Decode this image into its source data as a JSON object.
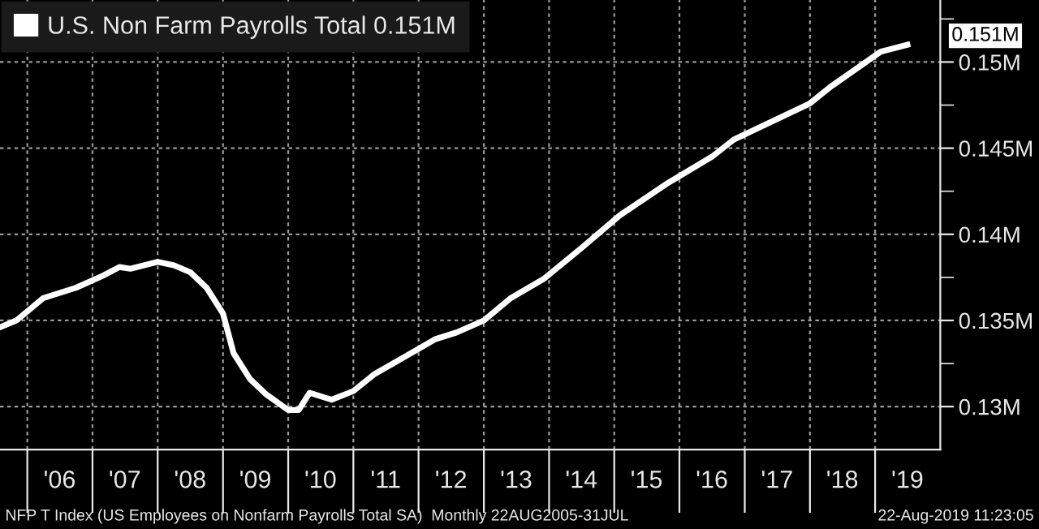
{
  "chart_data": {
    "type": "line",
    "x": [
      "2005-08",
      "2005-11",
      "2006-04",
      "2006-10",
      "2007-03",
      "2007-06",
      "2007-08",
      "2008-01",
      "2008-04",
      "2008-07",
      "2008-10",
      "2009-01",
      "2009-03",
      "2009-06",
      "2009-09",
      "2010-01",
      "2010-03",
      "2010-05",
      "2010-09",
      "2011-01",
      "2011-05",
      "2011-10",
      "2012-04",
      "2012-08",
      "2013-01",
      "2013-06",
      "2013-12",
      "2014-07",
      "2015-02",
      "2015-11",
      "2016-07",
      "2016-11",
      "2017-09",
      "2018-01",
      "2018-05",
      "2019-02",
      "2019-07"
    ],
    "series": [
      {
        "name": "U.S. Non Farm Payrolls Total 0.151M",
        "color": "#ffffff",
        "values": [
          0.1346,
          0.135,
          0.1363,
          0.1369,
          0.1376,
          0.1381,
          0.138,
          0.1384,
          0.1382,
          0.1378,
          0.1369,
          0.1354,
          0.1331,
          0.1316,
          0.1307,
          0.1298,
          0.1298,
          0.1308,
          0.1304,
          0.1309,
          0.1319,
          0.1328,
          0.1339,
          0.1343,
          0.135,
          0.1363,
          0.1374,
          0.1392,
          0.1411,
          0.143,
          0.1445,
          0.1455,
          0.147,
          0.1476,
          0.1486,
          0.1506,
          0.151
        ]
      }
    ],
    "xlim": [
      "2005-08",
      "2020-01"
    ],
    "xticks": [
      {
        "value": "2006-01",
        "label": null
      },
      {
        "value": "2006-07",
        "label": "'06"
      },
      {
        "value": "2007-01",
        "label": null
      },
      {
        "value": "2007-07",
        "label": "'07"
      },
      {
        "value": "2008-01",
        "label": null
      },
      {
        "value": "2008-07",
        "label": "'08"
      },
      {
        "value": "2009-01",
        "label": null
      },
      {
        "value": "2009-07",
        "label": "'09"
      },
      {
        "value": "2010-01",
        "label": null
      },
      {
        "value": "2010-07",
        "label": "'10"
      },
      {
        "value": "2011-01",
        "label": null
      },
      {
        "value": "2011-07",
        "label": "'11"
      },
      {
        "value": "2012-01",
        "label": null
      },
      {
        "value": "2012-07",
        "label": "'12"
      },
      {
        "value": "2013-01",
        "label": null
      },
      {
        "value": "2013-07",
        "label": "'13"
      },
      {
        "value": "2014-01",
        "label": null
      },
      {
        "value": "2014-07",
        "label": "'14"
      },
      {
        "value": "2015-01",
        "label": null
      },
      {
        "value": "2015-07",
        "label": "'15"
      },
      {
        "value": "2016-01",
        "label": null
      },
      {
        "value": "2016-07",
        "label": "'16"
      },
      {
        "value": "2017-01",
        "label": null
      },
      {
        "value": "2017-07",
        "label": "'17"
      },
      {
        "value": "2018-01",
        "label": null
      },
      {
        "value": "2018-07",
        "label": "'18"
      },
      {
        "value": "2019-01",
        "label": null
      },
      {
        "value": "2019-07",
        "label": "'19"
      }
    ],
    "ylim": [
      0.1275,
      0.1536
    ],
    "yticks": [
      {
        "value": 0.13,
        "label": "0.13M"
      },
      {
        "value": 0.1325,
        "label": null
      },
      {
        "value": 0.135,
        "label": "0.135M"
      },
      {
        "value": 0.1375,
        "label": null
      },
      {
        "value": 0.14,
        "label": "0.14M"
      },
      {
        "value": 0.1425,
        "label": null
      },
      {
        "value": 0.145,
        "label": "0.145M"
      },
      {
        "value": 0.1475,
        "label": null
      },
      {
        "value": 0.15,
        "label": "0.15M"
      },
      {
        "value": 0.1525,
        "label": null
      }
    ],
    "grid": true,
    "legend": "top left",
    "annotations": [
      {
        "text": "0.151M",
        "x": "2019-07",
        "y": 0.151
      },
      "NFP T Index (US Employees on Nonfarm Payrolls Total SA)  Monthly 22AUG2005-31JUL",
      "22-Aug-2019 11:23:05"
    ]
  }
}
